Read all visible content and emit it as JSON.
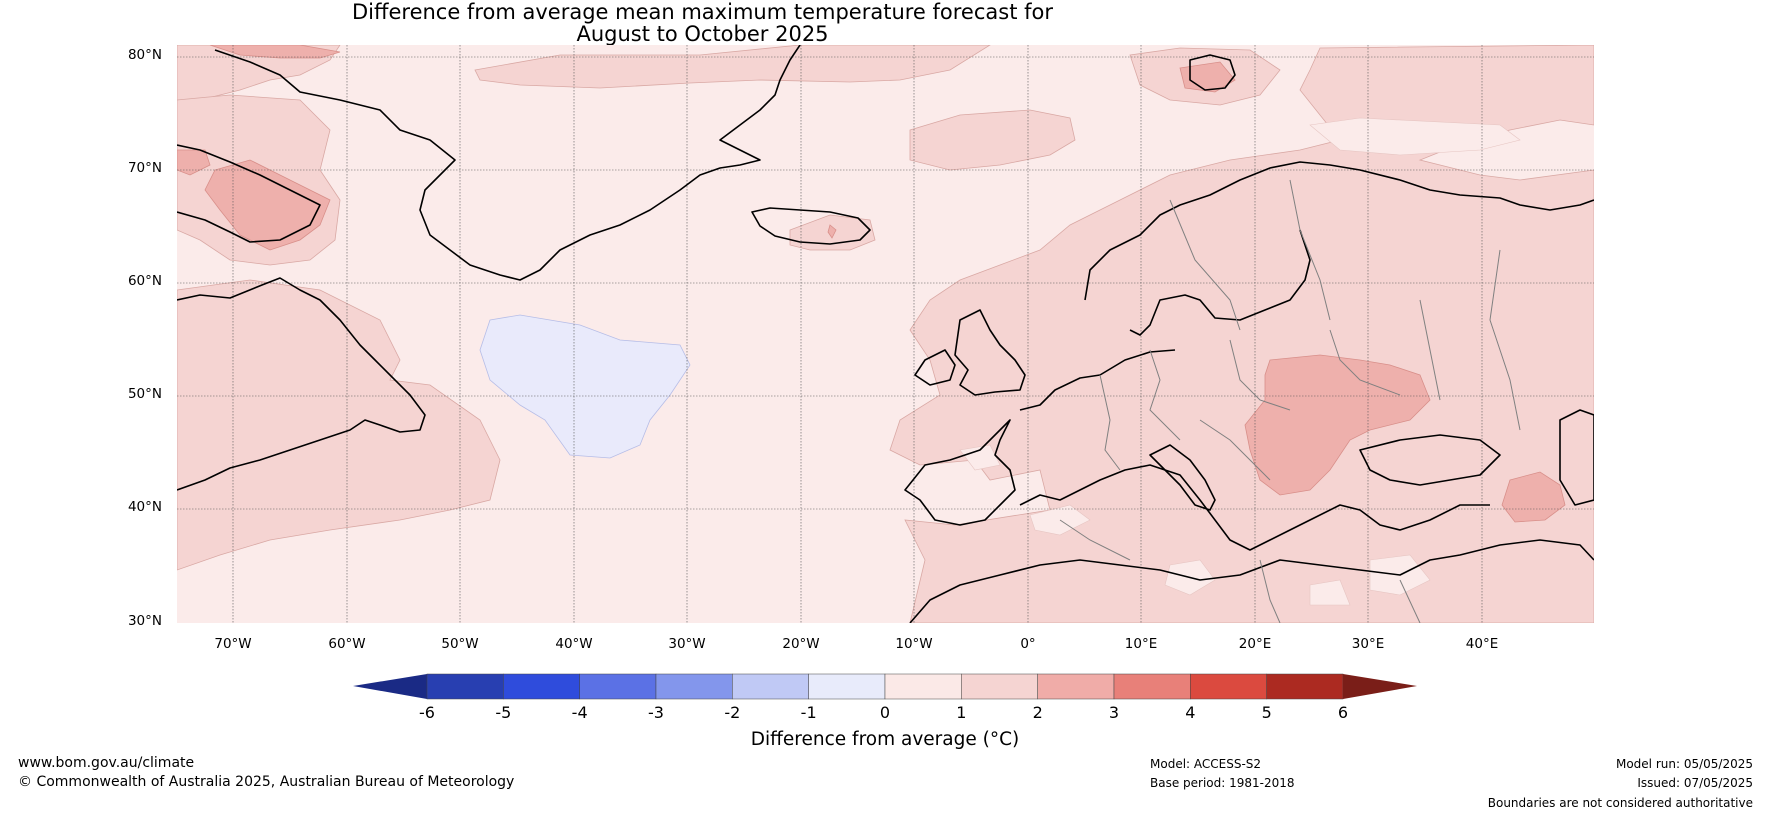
{
  "title_line1": "Difference from average mean maximum temperature forecast for",
  "title_line2": "August to October 2025",
  "map": {
    "region": "North Atlantic and Europe",
    "lat_labels": [
      "80°N",
      "70°N",
      "60°N",
      "50°N",
      "40°N",
      "30°N"
    ],
    "lon_labels": [
      "70°W",
      "60°W",
      "50°W",
      "40°W",
      "30°W",
      "20°W",
      "10°W",
      "0°",
      "10°E",
      "20°E",
      "30°E",
      "40°E"
    ],
    "lat_range": [
      30,
      81
    ],
    "lon_range": [
      -75,
      50
    ],
    "grid": true,
    "dominant_anomaly_band": "0 to 1",
    "regions": [
      {
        "area": "North Atlantic south of Greenland",
        "band": "-1 to 0"
      },
      {
        "area": "Eastern Europe / Ukraine / Romania",
        "band": "2 to 3"
      },
      {
        "area": "Caucasus",
        "band": "2 to 3"
      },
      {
        "area": "Most of Europe and Russia",
        "band": "1 to 2"
      },
      {
        "area": "Eastern Canada coast",
        "band": "1 to 2"
      },
      {
        "area": "Baffin Island",
        "band": "2 to 3"
      }
    ]
  },
  "colorbar": {
    "ticks": [
      "-6",
      "-5",
      "-4",
      "-3",
      "-2",
      "-1",
      "0",
      "1",
      "2",
      "3",
      "4",
      "5",
      "6"
    ],
    "colors": [
      "#283fb1",
      "#2f4cdc",
      "#5b71e5",
      "#8396ec",
      "#c0c9f5",
      "#e8ebfb",
      "#fbe9e7",
      "#f5d4d2",
      "#f0aca8",
      "#e88079",
      "#db4a3f",
      "#ac2a21"
    ],
    "extend_low_color": "#1a2a85",
    "extend_high_color": "#7a1e18",
    "label": "Difference from average (°C)"
  },
  "footer": {
    "website": "www.bom.gov.au/climate",
    "copyright": "© Commonwealth of Australia 2025, Australian Bureau of Meteorology",
    "model": "Model: ACCESS-S2",
    "base_period": "Base period: 1981-2018",
    "model_run": "Model run: 05/05/2025",
    "issued": "Issued: 07/05/2025",
    "boundaries_note": "Boundaries are not considered authoritative"
  }
}
